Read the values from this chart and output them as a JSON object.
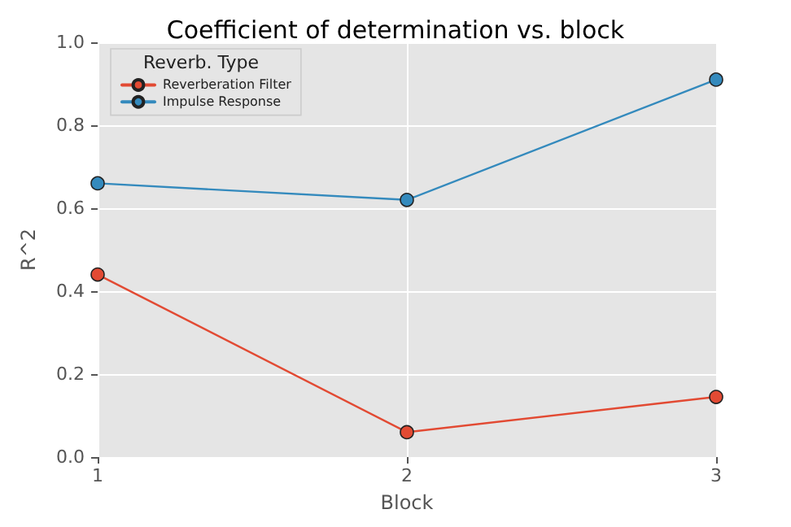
{
  "chart_data": {
    "type": "line",
    "title": "Coefficient of determination vs. block",
    "xlabel": "Block",
    "ylabel": "R^2",
    "legend_title": "Reverb. Type",
    "x": [
      1,
      2,
      3
    ],
    "xlim": [
      1,
      3
    ],
    "xticks": [
      1,
      2,
      3
    ],
    "ylim": [
      0,
      1
    ],
    "yticks": [
      {
        "value": 0,
        "label": "0.0"
      },
      {
        "value": 0.2,
        "label": "0.2"
      },
      {
        "value": 0.4,
        "label": "0.4"
      },
      {
        "value": 0.6,
        "label": "0.6"
      },
      {
        "value": 0.8,
        "label": "0.8"
      },
      {
        "value": 1,
        "label": "1.0"
      }
    ],
    "series": [
      {
        "name": "Reverberation Filter",
        "color": "#e24a33",
        "values": [
          0.44,
          0.06,
          0.145
        ]
      },
      {
        "name": "Impulse Response",
        "color": "#348abd",
        "values": [
          0.66,
          0.62,
          0.91
        ]
      }
    ],
    "grid": true,
    "legend": "top left",
    "marker": "circle",
    "line_style": "solid"
  }
}
